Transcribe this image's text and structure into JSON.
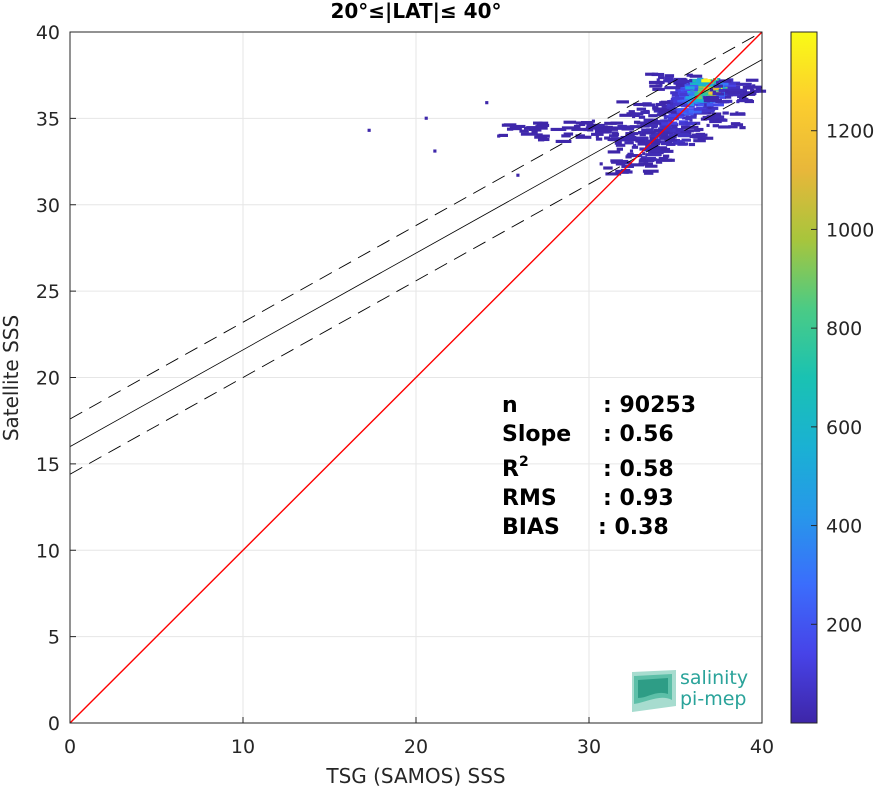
{
  "chart_data": {
    "type": "heatmap",
    "title": "20°≤|LAT|≤ 40°",
    "xlabel": "TSG (SAMOS) SSS",
    "ylabel": "Satellite SSS",
    "xlim": [
      0,
      40
    ],
    "ylim": [
      0,
      40
    ],
    "xticks": [
      "0",
      "10",
      "20",
      "30",
      "40"
    ],
    "yticks": [
      "0",
      "5",
      "10",
      "15",
      "20",
      "25",
      "30",
      "35",
      "40"
    ],
    "grid": true,
    "reference_line": {
      "name": "1:1",
      "color": "#ff0000",
      "points": [
        [
          0,
          0
        ],
        [
          40,
          40
        ]
      ]
    },
    "regression_line": {
      "color": "#000000",
      "points": [
        [
          0,
          16.0
        ],
        [
          40,
          38.4
        ]
      ]
    },
    "confidence_upper": {
      "color": "#000000",
      "style": "dashed",
      "points": [
        [
          0,
          17.6
        ],
        [
          40,
          40.0
        ]
      ]
    },
    "confidence_lower": {
      "color": "#000000",
      "style": "dashed",
      "points": [
        [
          0,
          14.4
        ],
        [
          40,
          36.8
        ]
      ]
    },
    "colorbar": {
      "range": [
        0,
        1400
      ],
      "ticks": [
        "200",
        "400",
        "600",
        "800",
        "1000",
        "1200"
      ],
      "tick_values": [
        200,
        400,
        600,
        800,
        1000,
        1200
      ],
      "colormap": [
        "#3e26a8",
        "#4743e8",
        "#3b6dfc",
        "#2797ea",
        "#1ab1d3",
        "#1ac2b2",
        "#4bcb85",
        "#a8c53c",
        "#e8b73a",
        "#fcce2e",
        "#f9fb15"
      ]
    },
    "density_clusters": [
      {
        "x": 33.5,
        "y": 34.0,
        "level": 40
      },
      {
        "x": 34.0,
        "y": 34.6,
        "level": 60
      },
      {
        "x": 34.8,
        "y": 35.2,
        "level": 120
      },
      {
        "x": 35.5,
        "y": 35.8,
        "level": 260
      },
      {
        "x": 36.0,
        "y": 36.3,
        "level": 420
      },
      {
        "x": 36.3,
        "y": 36.7,
        "level": 780
      },
      {
        "x": 36.6,
        "y": 36.9,
        "level": 1100
      },
      {
        "x": 32.5,
        "y": 33.5,
        "level": 30
      },
      {
        "x": 33.0,
        "y": 33.0,
        "level": 25
      },
      {
        "x": 31.5,
        "y": 34.2,
        "level": 20
      },
      {
        "x": 30.0,
        "y": 34.5,
        "level": 10
      },
      {
        "x": 28.0,
        "y": 34.2,
        "level": 8
      },
      {
        "x": 26.0,
        "y": 34.4,
        "level": 8
      },
      {
        "x": 37.8,
        "y": 36.5,
        "level": 40
      },
      {
        "x": 38.3,
        "y": 36.9,
        "level": 30
      },
      {
        "x": 37.5,
        "y": 35.0,
        "level": 20
      },
      {
        "x": 32.0,
        "y": 32.3,
        "level": 15
      },
      {
        "x": 34.5,
        "y": 37.2,
        "level": 30
      },
      {
        "x": 33.0,
        "y": 35.6,
        "level": 20
      },
      {
        "x": 35.0,
        "y": 34.0,
        "level": 50
      }
    ],
    "isolated_points": [
      {
        "x": 17.2,
        "y": 34.4
      },
      {
        "x": 20.5,
        "y": 35.1
      },
      {
        "x": 21.0,
        "y": 33.2
      },
      {
        "x": 24.0,
        "y": 36.0
      },
      {
        "x": 25.8,
        "y": 31.8
      }
    ]
  },
  "stats": {
    "n_label": "n",
    "n_value": ": 90253",
    "slope_label": "Slope",
    "slope_value": ": 0.56",
    "r2_label": "R",
    "r2_sup": "2",
    "r2_value": ": 0.58",
    "rms_label": "RMS",
    "rms_value": ": 0.93",
    "bias_label": "BIAS",
    "bias_value": ": 0.38"
  },
  "logo": {
    "line1": "salinity",
    "line2": "pi-mep"
  }
}
